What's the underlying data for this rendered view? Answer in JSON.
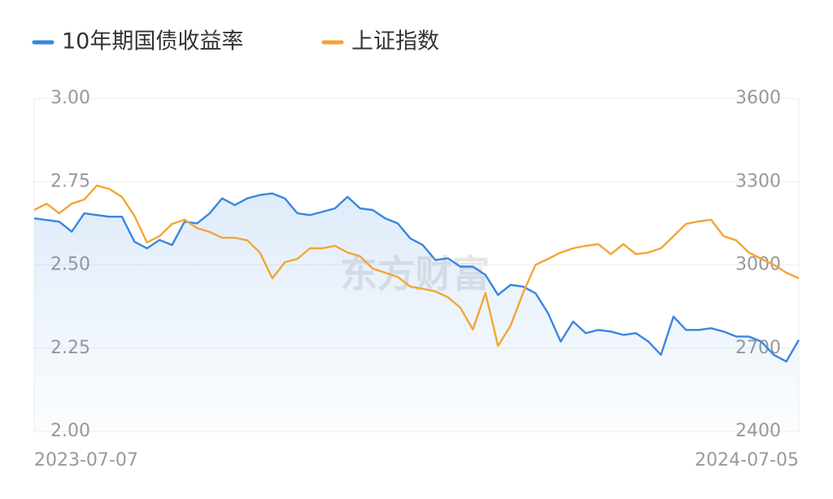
{
  "chart_data": {
    "type": "line",
    "watermark": "东方财富",
    "categories": [
      "2023-07-07",
      null,
      null,
      null,
      null,
      null,
      null,
      null,
      null,
      null,
      null,
      null,
      null,
      null,
      null,
      null,
      null,
      null,
      null,
      null,
      null,
      null,
      null,
      null,
      null,
      null,
      null,
      null,
      null,
      null,
      null,
      null,
      null,
      null,
      null,
      null,
      null,
      null,
      null,
      null,
      null,
      null,
      null,
      null,
      null,
      null,
      null,
      null,
      null,
      null,
      null,
      null,
      null,
      null,
      null,
      null,
      null,
      null,
      null,
      null,
      null,
      "2024-07-05"
    ],
    "series": [
      {
        "name": "10年期国债收益率",
        "color": "#3a86e0",
        "axis": "y",
        "values": [
          2.64,
          2.635,
          2.63,
          2.6,
          2.655,
          2.65,
          2.645,
          2.645,
          2.57,
          2.55,
          2.575,
          2.56,
          2.63,
          2.625,
          2.655,
          2.7,
          2.68,
          2.7,
          2.71,
          2.715,
          2.7,
          2.655,
          2.65,
          2.66,
          2.67,
          2.705,
          2.67,
          2.665,
          2.64,
          2.625,
          2.58,
          2.56,
          2.515,
          2.52,
          2.495,
          2.495,
          2.47,
          2.41,
          2.44,
          2.435,
          2.415,
          2.355,
          2.27,
          2.33,
          2.295,
          2.305,
          2.3,
          2.29,
          2.295,
          2.27,
          2.23,
          2.345,
          2.305,
          2.305,
          2.31,
          2.3,
          2.285,
          2.285,
          2.27,
          2.23,
          2.21,
          2.275
        ]
      },
      {
        "name": "上证指数",
        "color": "#f4a533",
        "axis": "y2",
        "values": [
          3198,
          3221,
          3186,
          3221,
          3236,
          3286,
          3274,
          3245,
          3177,
          3081,
          3104,
          3148,
          3163,
          3133,
          3119,
          3098,
          3098,
          3089,
          3045,
          2952,
          3010,
          3022,
          3060,
          3060,
          3069,
          3045,
          3031,
          2987,
          2972,
          2957,
          2922,
          2914,
          2905,
          2884,
          2846,
          2767,
          2899,
          2708,
          2781,
          2899,
          3001,
          3022,
          3045,
          3060,
          3069,
          3075,
          3039,
          3075,
          3039,
          3045,
          3060,
          3104,
          3148,
          3157,
          3163,
          3104,
          3089,
          3045,
          3022,
          3001,
          2972,
          2952
        ]
      }
    ],
    "ylim": [
      2,
      3
    ],
    "yticks": [
      {
        "value": 2,
        "label": "2.00"
      },
      {
        "value": 2.25,
        "label": "2.25"
      },
      {
        "value": 2.5,
        "label": "2.50"
      },
      {
        "value": 2.75,
        "label": "2.75"
      },
      {
        "value": 3,
        "label": "3.00"
      }
    ],
    "y2lim": [
      2400,
      3600
    ],
    "y2ticks": [
      2400,
      2700,
      3000,
      3300,
      3600
    ],
    "grid": true
  }
}
